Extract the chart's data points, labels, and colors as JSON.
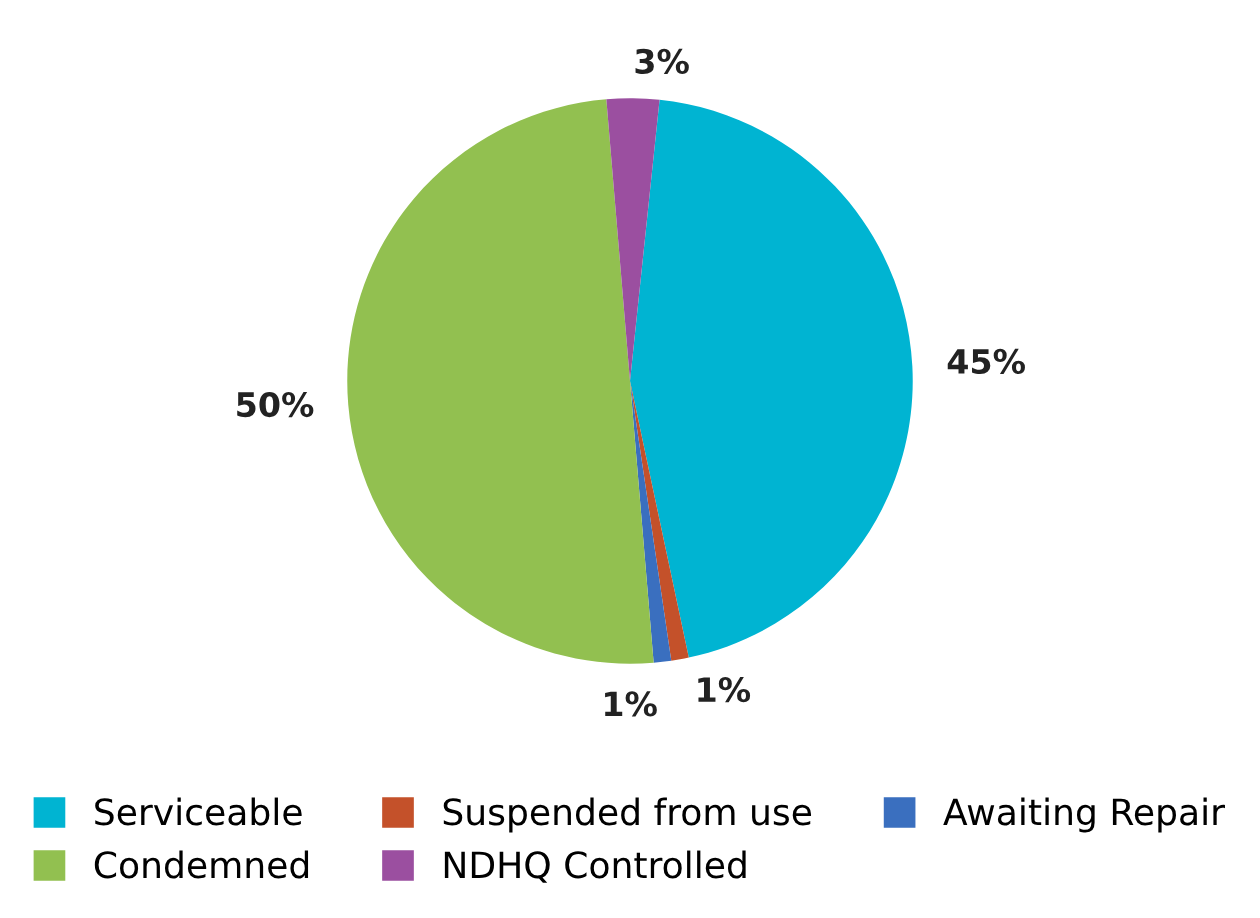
{
  "chart_data": {
    "type": "pie",
    "categories": [
      "Serviceable",
      "Suspended from use",
      "Awaiting Repair",
      "Condemned",
      "NDHQ Controlled"
    ],
    "values": [
      45,
      1,
      1,
      50,
      3
    ],
    "value_labels": [
      "45%",
      "1%",
      "1%",
      "50%",
      "3%"
    ],
    "colors": [
      "#00b4d2",
      "#c4512a",
      "#3a6fbf",
      "#92c050",
      "#9b4fa0"
    ],
    "legend": "bottom"
  }
}
